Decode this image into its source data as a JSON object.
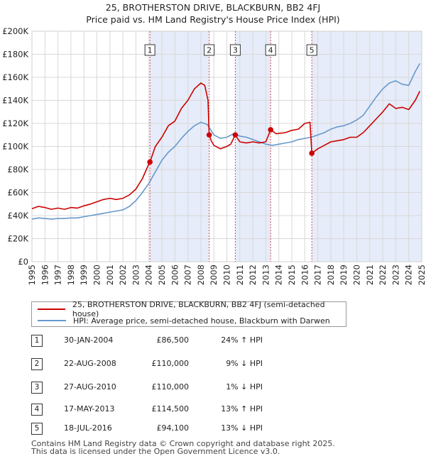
{
  "title": {
    "line1": "25, BROTHERSTON DRIVE, BLACKBURN, BB2 4FJ",
    "line2": "Price paid vs. HM Land Registry's House Price Index (HPI)"
  },
  "colors": {
    "property": "#cc0000",
    "hpi": "#6699cc",
    "shade": "#dde6f7",
    "grid": "#d8d8d8"
  },
  "legend": {
    "property": "25, BROTHERSTON DRIVE, BLACKBURN, BB2 4FJ (semi-detached house)",
    "hpi": "HPI: Average price, semi-detached house, Blackburn with Darwen"
  },
  "sales": [
    {
      "num": "1",
      "date": "30-JAN-2004",
      "price": "£86,500",
      "hpi": "24% ↑ HPI"
    },
    {
      "num": "2",
      "date": "22-AUG-2008",
      "price": "£110,000",
      "hpi": "9% ↓ HPI"
    },
    {
      "num": "3",
      "date": "27-AUG-2010",
      "price": "£110,000",
      "hpi": "1% ↓ HPI"
    },
    {
      "num": "4",
      "date": "17-MAY-2013",
      "price": "£114,500",
      "hpi": "13% ↑ HPI"
    },
    {
      "num": "5",
      "date": "18-JUL-2016",
      "price": "£94,100",
      "hpi": "13% ↓ HPI"
    }
  ],
  "footer": {
    "line1": "Contains HM Land Registry data © Crown copyright and database right 2025.",
    "line2": "This data is licensed under the Open Government Licence v3.0."
  },
  "chart_data": {
    "type": "line",
    "xlim": [
      1995,
      2025
    ],
    "ylim": [
      0,
      200000
    ],
    "y_ticks": [
      {
        "value": 0,
        "label": "£0"
      },
      {
        "value": 20000,
        "label": "£20K"
      },
      {
        "value": 40000,
        "label": "£40K"
      },
      {
        "value": 60000,
        "label": "£60K"
      },
      {
        "value": 80000,
        "label": "£80K"
      },
      {
        "value": 100000,
        "label": "£100K"
      },
      {
        "value": 120000,
        "label": "£120K"
      },
      {
        "value": 140000,
        "label": "£140K"
      },
      {
        "value": 160000,
        "label": "£160K"
      },
      {
        "value": 180000,
        "label": "£180K"
      },
      {
        "value": 200000,
        "label": "£200K"
      }
    ],
    "x_ticks": [
      "1995",
      "1996",
      "1997",
      "1998",
      "1999",
      "2000",
      "2001",
      "2002",
      "2003",
      "2004",
      "2005",
      "2006",
      "2007",
      "2008",
      "2009",
      "2010",
      "2011",
      "2012",
      "2013",
      "2014",
      "2015",
      "2016",
      "2017",
      "2018",
      "2019",
      "2020",
      "2021",
      "2022",
      "2023",
      "2024",
      "2025"
    ],
    "grid": true,
    "shaded_spans": [
      [
        2004.08,
        2008.64
      ],
      [
        2010.65,
        2013.37
      ],
      [
        2016.54,
        2025.0
      ]
    ],
    "sale_markers": [
      {
        "label": "1",
        "x": 2004.08,
        "y": 86500
      },
      {
        "label": "2",
        "x": 2008.64,
        "y": 110000
      },
      {
        "label": "3",
        "x": 2010.65,
        "y": 110000
      },
      {
        "label": "4",
        "x": 2013.37,
        "y": 114500
      },
      {
        "label": "5",
        "x": 2016.54,
        "y": 94100
      }
    ],
    "series": [
      {
        "name": "25, BROTHERSTON DRIVE, BLACKBURN, BB2 4FJ (semi-detached house)",
        "color": "#cc0000",
        "points": [
          [
            1995.0,
            46000
          ],
          [
            1995.5,
            48000
          ],
          [
            1996.0,
            47000
          ],
          [
            1996.5,
            45500
          ],
          [
            1997.0,
            46500
          ],
          [
            1997.5,
            45500
          ],
          [
            1998.0,
            47000
          ],
          [
            1998.5,
            46500
          ],
          [
            1999.0,
            48500
          ],
          [
            1999.5,
            50000
          ],
          [
            2000.0,
            52000
          ],
          [
            2000.5,
            54000
          ],
          [
            2001.0,
            55000
          ],
          [
            2001.5,
            54000
          ],
          [
            2002.0,
            55000
          ],
          [
            2002.5,
            58000
          ],
          [
            2003.0,
            63000
          ],
          [
            2003.5,
            72000
          ],
          [
            2004.0,
            85000
          ],
          [
            2004.08,
            86500
          ],
          [
            2004.5,
            100000
          ],
          [
            2005.0,
            108000
          ],
          [
            2005.5,
            118000
          ],
          [
            2006.0,
            122000
          ],
          [
            2006.5,
            133000
          ],
          [
            2007.0,
            140000
          ],
          [
            2007.5,
            150000
          ],
          [
            2008.0,
            155000
          ],
          [
            2008.3,
            153000
          ],
          [
            2008.55,
            140000
          ],
          [
            2008.64,
            110000
          ],
          [
            2008.8,
            105000
          ],
          [
            2009.0,
            101000
          ],
          [
            2009.5,
            98000
          ],
          [
            2010.0,
            100000
          ],
          [
            2010.3,
            102000
          ],
          [
            2010.65,
            110000
          ],
          [
            2011.0,
            104000
          ],
          [
            2011.5,
            103000
          ],
          [
            2012.0,
            104000
          ],
          [
            2012.5,
            103000
          ],
          [
            2013.0,
            104000
          ],
          [
            2013.37,
            114500
          ],
          [
            2013.8,
            111000
          ],
          [
            2014.5,
            112000
          ],
          [
            2015.0,
            114000
          ],
          [
            2015.5,
            115000
          ],
          [
            2016.0,
            120000
          ],
          [
            2016.4,
            121000
          ],
          [
            2016.54,
            94100
          ],
          [
            2017.0,
            98000
          ],
          [
            2017.5,
            101000
          ],
          [
            2018.0,
            104000
          ],
          [
            2018.5,
            105000
          ],
          [
            2019.0,
            106000
          ],
          [
            2019.5,
            108000
          ],
          [
            2020.0,
            108000
          ],
          [
            2020.5,
            112000
          ],
          [
            2021.0,
            118000
          ],
          [
            2021.5,
            124000
          ],
          [
            2022.0,
            130000
          ],
          [
            2022.5,
            137000
          ],
          [
            2023.0,
            133000
          ],
          [
            2023.5,
            134000
          ],
          [
            2024.0,
            132000
          ],
          [
            2024.5,
            140000
          ],
          [
            2024.85,
            148000
          ]
        ]
      },
      {
        "name": "HPI: Average price, semi-detached house, Blackburn with Darwen",
        "color": "#6699cc",
        "points": [
          [
            1995.0,
            37000
          ],
          [
            1995.5,
            38000
          ],
          [
            1996.0,
            37500
          ],
          [
            1996.5,
            37000
          ],
          [
            1997.0,
            37500
          ],
          [
            1997.5,
            37500
          ],
          [
            1998.0,
            38000
          ],
          [
            1998.5,
            38000
          ],
          [
            1999.0,
            39000
          ],
          [
            1999.5,
            40000
          ],
          [
            2000.0,
            41000
          ],
          [
            2000.5,
            42000
          ],
          [
            2001.0,
            43000
          ],
          [
            2001.5,
            44000
          ],
          [
            2002.0,
            45000
          ],
          [
            2002.5,
            48000
          ],
          [
            2003.0,
            53000
          ],
          [
            2003.5,
            60000
          ],
          [
            2004.0,
            68000
          ],
          [
            2004.5,
            78000
          ],
          [
            2005.0,
            88000
          ],
          [
            2005.5,
            95000
          ],
          [
            2006.0,
            100000
          ],
          [
            2006.5,
            107000
          ],
          [
            2007.0,
            113000
          ],
          [
            2007.5,
            118000
          ],
          [
            2008.0,
            121000
          ],
          [
            2008.5,
            119000
          ],
          [
            2009.0,
            110000
          ],
          [
            2009.5,
            107000
          ],
          [
            2010.0,
            108000
          ],
          [
            2010.5,
            111000
          ],
          [
            2011.0,
            109000
          ],
          [
            2011.5,
            108000
          ],
          [
            2012.0,
            106000
          ],
          [
            2012.5,
            104000
          ],
          [
            2013.0,
            102000
          ],
          [
            2013.5,
            101000
          ],
          [
            2014.0,
            102000
          ],
          [
            2014.5,
            103000
          ],
          [
            2015.0,
            104000
          ],
          [
            2015.5,
            106000
          ],
          [
            2016.0,
            107000
          ],
          [
            2016.5,
            108000
          ],
          [
            2017.0,
            110000
          ],
          [
            2017.5,
            112000
          ],
          [
            2018.0,
            115000
          ],
          [
            2018.5,
            117000
          ],
          [
            2019.0,
            118000
          ],
          [
            2019.5,
            120000
          ],
          [
            2020.0,
            123000
          ],
          [
            2020.5,
            127000
          ],
          [
            2021.0,
            135000
          ],
          [
            2021.5,
            143000
          ],
          [
            2022.0,
            150000
          ],
          [
            2022.5,
            155000
          ],
          [
            2023.0,
            157000
          ],
          [
            2023.5,
            154000
          ],
          [
            2024.0,
            153000
          ],
          [
            2024.5,
            165000
          ],
          [
            2024.85,
            172000
          ]
        ]
      }
    ]
  }
}
